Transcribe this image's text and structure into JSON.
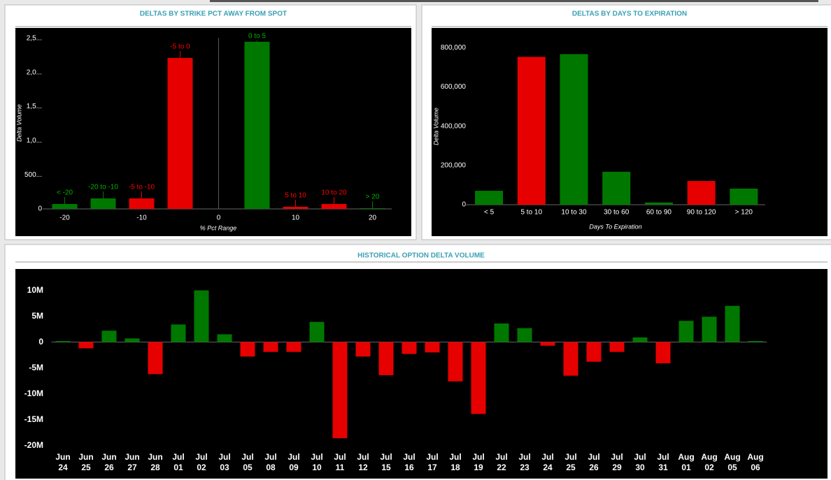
{
  "chart_data": [
    {
      "type": "bar",
      "title": "DELTAS BY STRIKE PCT AWAY FROM SPOT",
      "x_label": "% Pct Range",
      "y_label": "Delta Volume",
      "categories": [
        "< -20",
        "-20 to -10",
        "-5 to -10",
        "-5 to 0",
        "0 to 5",
        "5 to 10",
        "10 to 20",
        "> 20"
      ],
      "x": [
        -20,
        -15,
        -10,
        -5,
        5,
        10,
        15,
        20
      ],
      "values": [
        72000,
        154000,
        154000,
        2213000,
        2450000,
        31000,
        72000,
        10000
      ],
      "colors": [
        "#007800",
        "#007800",
        "#e60000",
        "#e60000",
        "#007800",
        "#e60000",
        "#e60000",
        "#007800"
      ],
      "xlim": [
        -22.5,
        22.5
      ],
      "xticks": [
        -20,
        -10,
        0,
        10,
        20
      ],
      "ylim": [
        0,
        2550000
      ],
      "yticks": [
        0,
        {
          "value": 500000,
          "label": "500..."
        },
        {
          "value": 1000000,
          "label": "1,0..."
        },
        {
          "value": 1500000,
          "label": "1,5..."
        },
        {
          "value": 2000000,
          "label": "2,0..."
        },
        {
          "value": 2500000,
          "label": "2,5..."
        }
      ]
    },
    {
      "type": "bar",
      "title": "DELTAS BY DAYS TO EXPIRATION",
      "x_label": "Days To Expiration",
      "y_label": "Delta Volume",
      "categories": [
        "< 5",
        "5 to 10",
        "10 to 30",
        "30 to 60",
        "60 to 90",
        "90 to 120",
        "> 120"
      ],
      "values": [
        71000,
        754000,
        768000,
        168000,
        11000,
        121000,
        82000
      ],
      "colors": [
        "#007800",
        "#e60000",
        "#007800",
        "#007800",
        "#007800",
        "#e60000",
        "#007800"
      ],
      "ylim": [
        0,
        880000
      ],
      "yticks": [
        0,
        {
          "value": 200000,
          "label": "200,000"
        },
        {
          "value": 400000,
          "label": "400,000"
        },
        {
          "value": 600000,
          "label": "600,000"
        },
        {
          "value": 800000,
          "label": "800,000"
        }
      ]
    },
    {
      "type": "bar",
      "title": "HISTORICAL OPTION DELTA VOLUME",
      "categories": [
        "Jun 24",
        "Jun 25",
        "Jun 26",
        "Jun 27",
        "Jun 28",
        "Jul 01",
        "Jul 02",
        "Jul 03",
        "Jul 05",
        "Jul 08",
        "Jul 09",
        "Jul 10",
        "Jul 11",
        "Jul 12",
        "Jul 15",
        "Jul 16",
        "Jul 17",
        "Jul 18",
        "Jul 19",
        "Jul 22",
        "Jul 23",
        "Jul 24",
        "Jul 25",
        "Jul 26",
        "Jul 29",
        "Jul 30",
        "Jul 31",
        "Aug 01",
        "Aug 02",
        "Aug 05",
        "Aug 06"
      ],
      "values": [
        200000,
        -1200000,
        2200000,
        700000,
        -6200000,
        3400000,
        10000000,
        1500000,
        -2800000,
        -1900000,
        -1900000,
        3900000,
        -18600000,
        -2800000,
        -6400000,
        -2300000,
        -2000000,
        -7600000,
        -13900000,
        3600000,
        2700000,
        -700000,
        -6500000,
        -3800000,
        -1900000,
        900000,
        -4100000,
        4100000,
        4900000,
        7000000,
        200000
      ],
      "positive_color": "#007800",
      "negative_color": "#e60000",
      "ylim": [
        -21000000,
        14000000
      ],
      "yticks": [
        {
          "value": 10000000,
          "label": "10M"
        },
        {
          "value": 5000000,
          "label": "5M"
        },
        0,
        {
          "value": -5000000,
          "label": "-5M"
        },
        {
          "value": -10000000,
          "label": "-10M"
        },
        {
          "value": -15000000,
          "label": "-15M"
        },
        {
          "value": -20000000,
          "label": "-20M"
        }
      ]
    }
  ]
}
